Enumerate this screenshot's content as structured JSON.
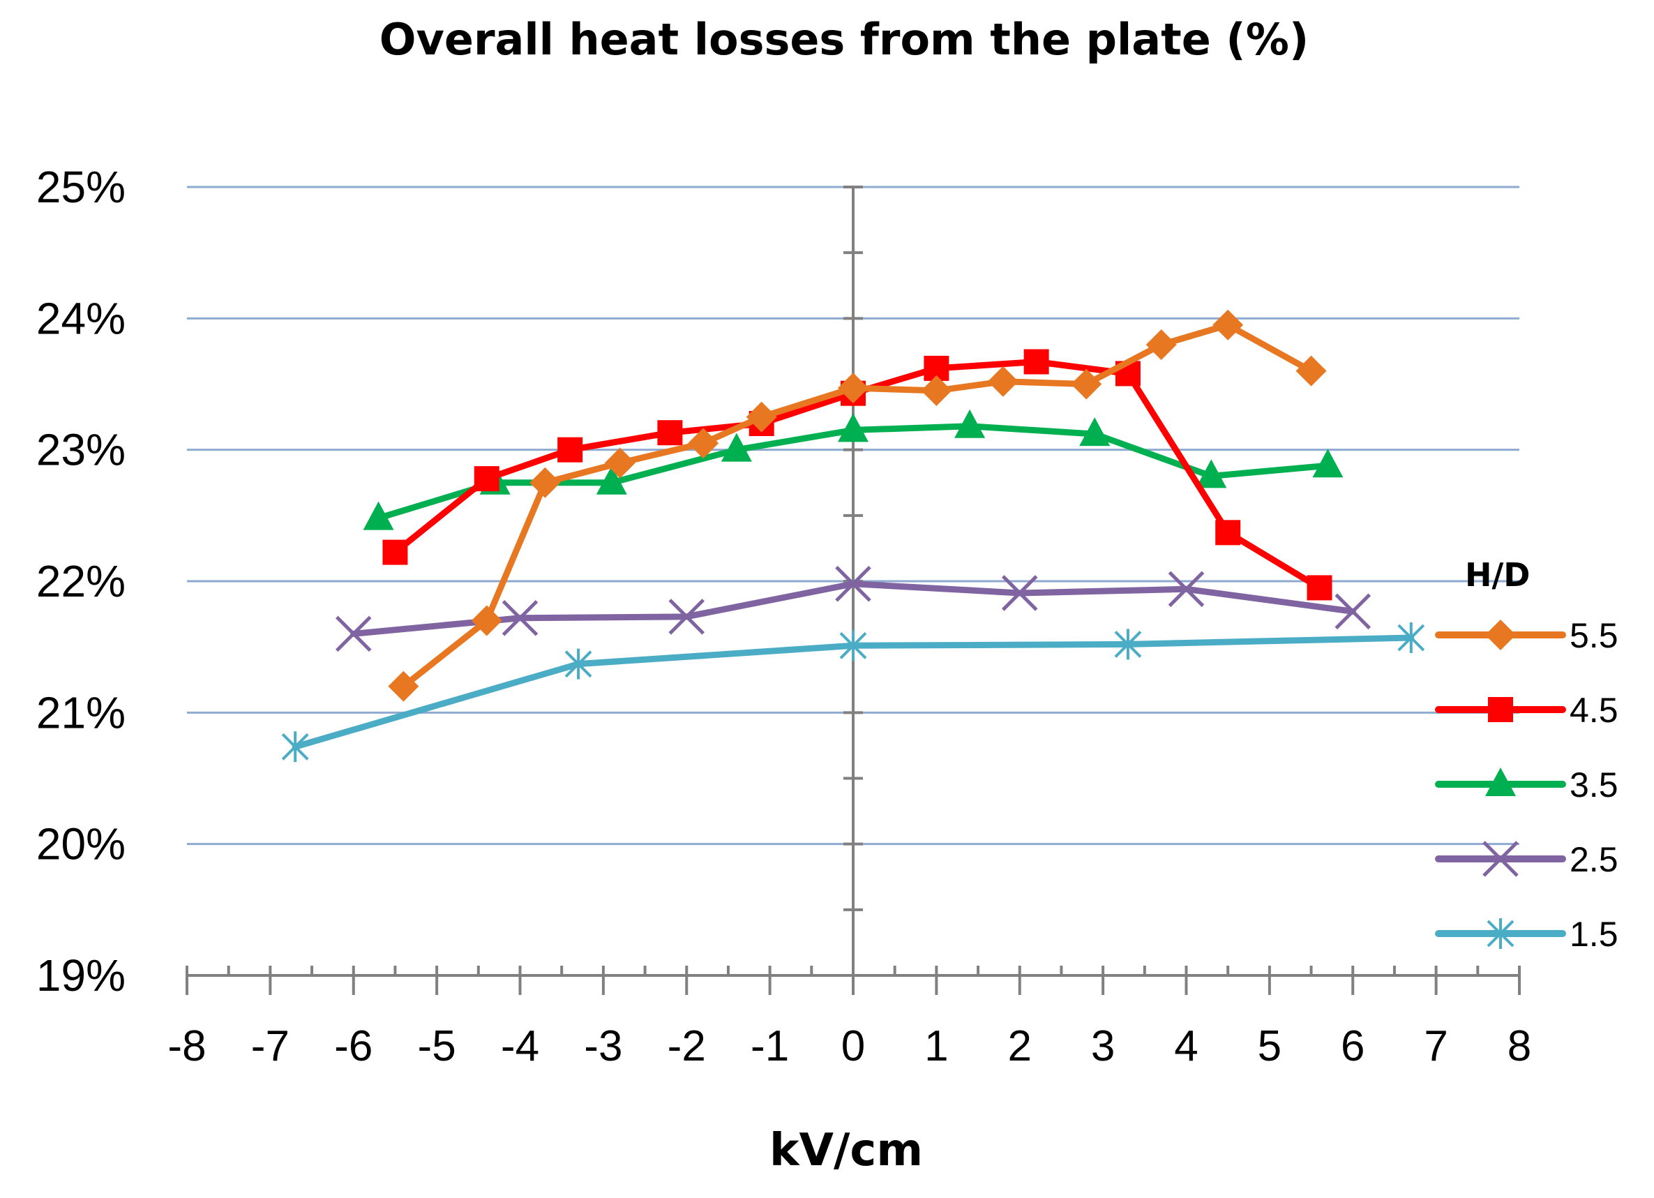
{
  "chart_data": {
    "type": "line",
    "title": "Overall heat losses from the plate (%)",
    "xlabel": "kV/cm",
    "ylabel": "",
    "xlim": [
      -8,
      8
    ],
    "ylim": [
      19,
      25
    ],
    "x_ticks": [
      "-8",
      "-7",
      "-6",
      "-5",
      "-4",
      "-3",
      "-2",
      "-1",
      "0",
      "1",
      "2",
      "3",
      "4",
      "5",
      "6",
      "7",
      "8"
    ],
    "y_ticks": [
      "19%",
      "20%",
      "21%",
      "22%",
      "23%",
      "24%",
      "25%"
    ],
    "grid": true,
    "legend_title": "H/D",
    "legend_position": "right",
    "series": [
      {
        "name": "5.5",
        "color": "#E87722",
        "marker": "diamond",
        "x": [
          -5.4,
          -4.4,
          -3.7,
          -2.8,
          -1.8,
          -1.1,
          0,
          1.0,
          1.8,
          2.8,
          3.7,
          4.5,
          5.5
        ],
        "y": [
          21.2,
          21.7,
          22.75,
          22.9,
          23.05,
          23.25,
          23.47,
          23.45,
          23.52,
          23.5,
          23.8,
          23.95,
          23.6
        ]
      },
      {
        "name": "4.5",
        "color": "#FF0000",
        "marker": "square",
        "x": [
          -5.5,
          -4.4,
          -3.4,
          -2.2,
          -1.1,
          0,
          1.0,
          2.2,
          3.3,
          4.5,
          5.6
        ],
        "y": [
          22.22,
          22.78,
          23.0,
          23.13,
          23.2,
          23.43,
          23.62,
          23.67,
          23.58,
          22.37,
          21.95
        ]
      },
      {
        "name": "3.5",
        "color": "#00B050",
        "marker": "triangle",
        "x": [
          -5.7,
          -4.3,
          -2.9,
          -1.4,
          0,
          1.4,
          2.9,
          4.3,
          5.7
        ],
        "y": [
          22.48,
          22.75,
          22.75,
          23.0,
          23.15,
          23.18,
          23.12,
          22.8,
          22.88
        ]
      },
      {
        "name": "2.5",
        "color": "#8064A2",
        "marker": "x",
        "x": [
          -6.0,
          -4.0,
          -2.0,
          0,
          2.0,
          4.0,
          6.0
        ],
        "y": [
          21.6,
          21.72,
          21.73,
          21.98,
          21.91,
          21.94,
          21.77
        ]
      },
      {
        "name": "1.5",
        "color": "#4BACC6",
        "marker": "star",
        "x": [
          -6.7,
          -3.3,
          0,
          3.3,
          6.7
        ],
        "y": [
          20.74,
          21.37,
          21.51,
          21.52,
          21.57
        ]
      }
    ]
  }
}
